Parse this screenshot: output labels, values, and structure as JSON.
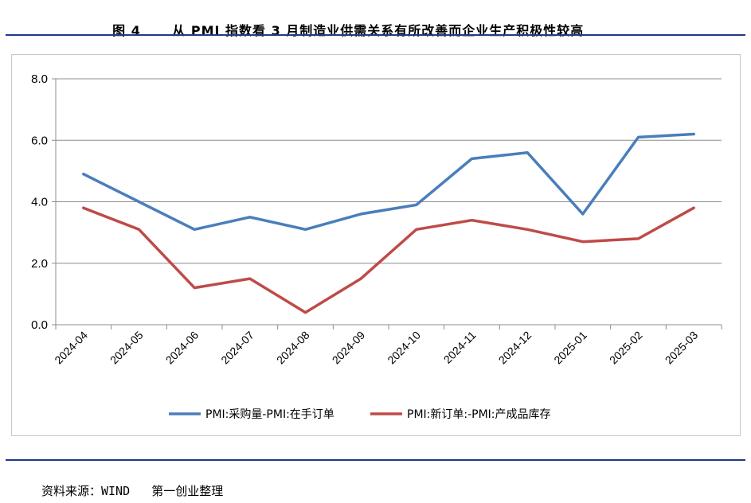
{
  "header": {
    "figure_label": "图 4",
    "title": "从 PMI 指数看 3 月制造业供需关系有所改善而企业生产积极性较高"
  },
  "footer": {
    "source": "资料来源：WIND   第一创业整理"
  },
  "chart_data": {
    "type": "line",
    "categories": [
      "2024-04",
      "2024-05",
      "2024-06",
      "2024-07",
      "2024-08",
      "2024-09",
      "2024-10",
      "2024-11",
      "2024-12",
      "2025-01",
      "2025-02",
      "2025-03"
    ],
    "series": [
      {
        "name": "PMI:采购量-PMI:在手订单",
        "color": "#4a7ebb",
        "values": [
          4.9,
          4.0,
          3.1,
          3.5,
          3.1,
          3.6,
          3.9,
          5.4,
          5.6,
          3.6,
          6.1,
          6.2
        ]
      },
      {
        "name": "PMI:新订单:-PMI:产成品库存",
        "color": "#be4b48",
        "values": [
          3.8,
          3.1,
          1.2,
          1.5,
          0.4,
          1.5,
          3.1,
          3.4,
          3.1,
          2.7,
          2.8,
          3.8
        ]
      }
    ],
    "ylim": [
      0,
      8
    ],
    "yticks": [
      "0.0",
      "2.0",
      "4.0",
      "6.0",
      "8.0"
    ],
    "grid": true,
    "legend_position": "bottom"
  }
}
